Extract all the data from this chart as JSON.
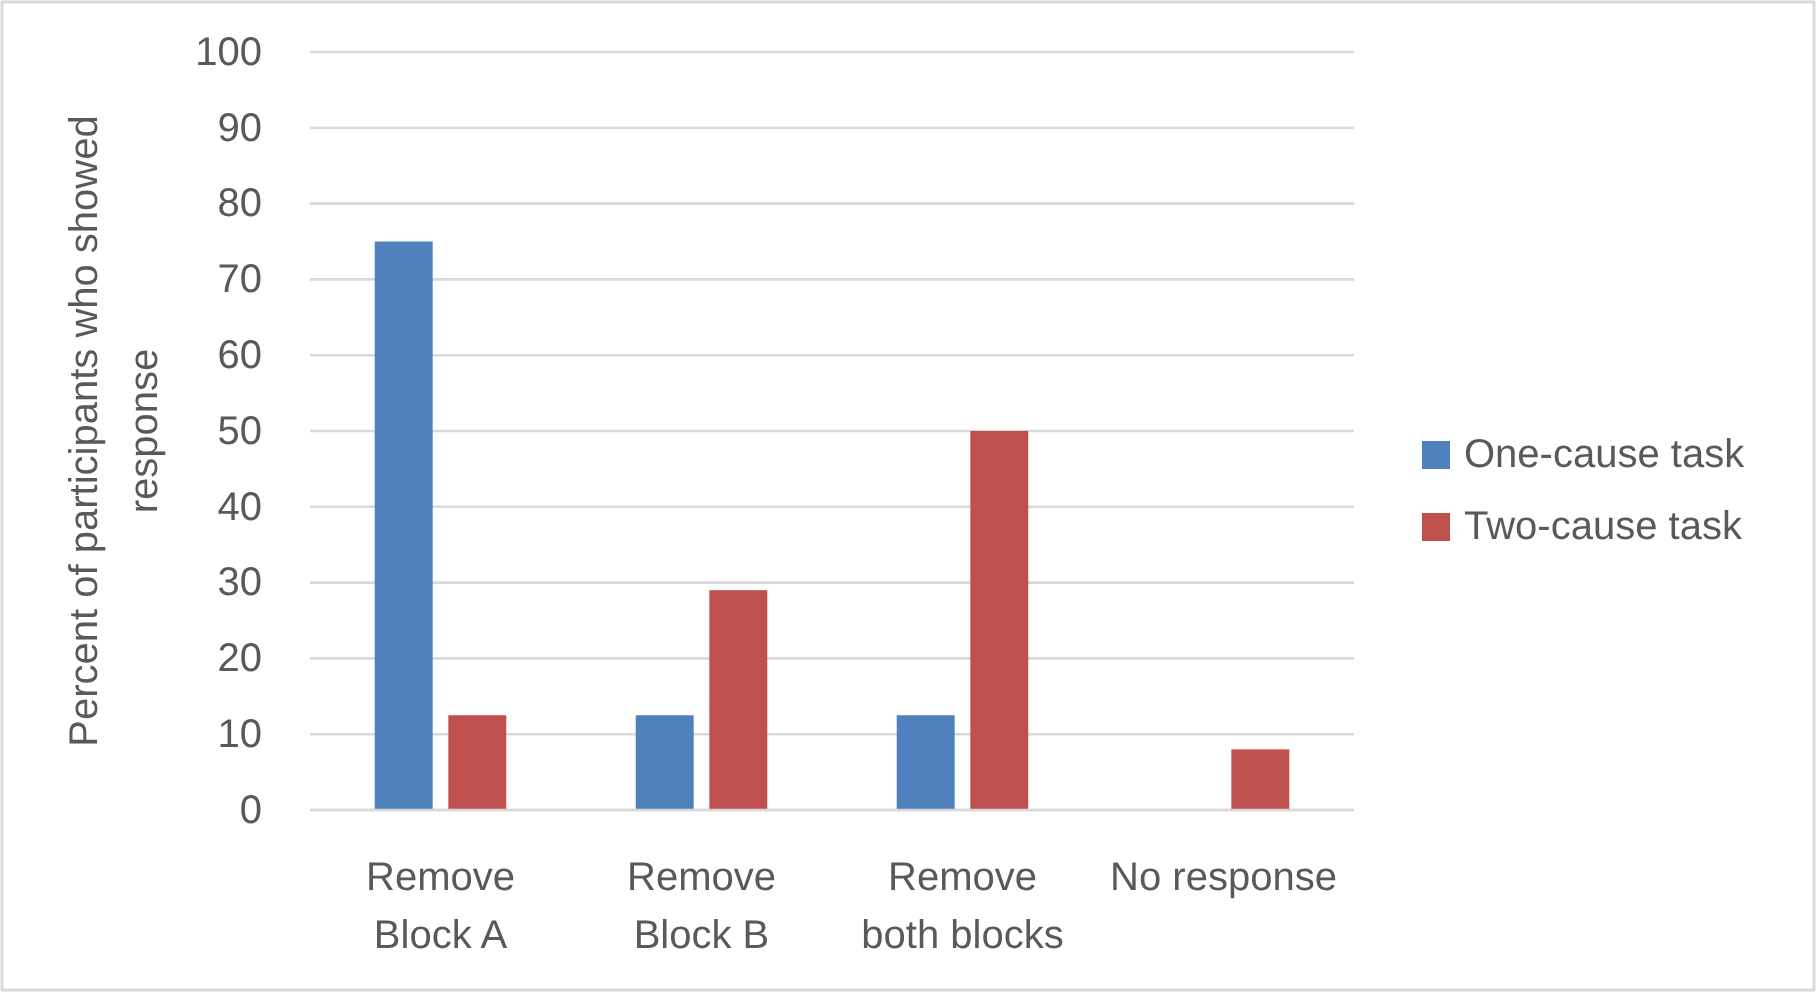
{
  "chart_data": {
    "type": "bar",
    "ylabel": "Percent of participants who showed response",
    "categories": [
      "Remove\nBlock A",
      "Remove\nBlock B",
      "Remove\nboth blocks",
      "No response"
    ],
    "series": [
      {
        "name": "One-cause task",
        "color": "#4f81bd",
        "values": [
          75,
          12.5,
          12.5,
          0
        ]
      },
      {
        "name": "Two-cause task",
        "color": "#c0504d",
        "values": [
          12.5,
          29,
          50,
          8
        ]
      }
    ],
    "ylim": [
      0,
      100
    ],
    "yticks": [
      0,
      10,
      20,
      30,
      40,
      50,
      60,
      70,
      80,
      90,
      100
    ],
    "grid": "y",
    "legend": "right"
  }
}
